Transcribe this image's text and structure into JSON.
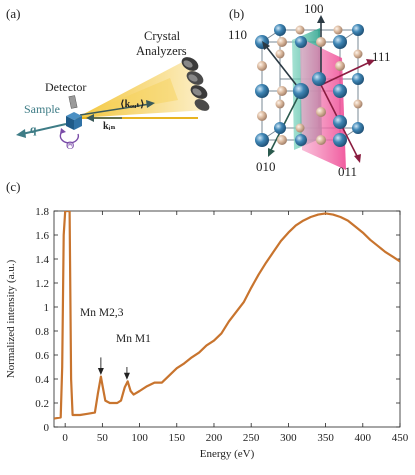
{
  "panels": {
    "a": "(a)",
    "b": "(b)",
    "c": "(c)"
  },
  "setup": {
    "crystal_analyzers_line1": "Crystal",
    "crystal_analyzers_line2": "Analyzers",
    "detector": "Detector",
    "sample": "Sample",
    "q": "q",
    "theta": "Θ",
    "k_out": "⟨kₒᵤₜ⟩",
    "k_in": "kᵢₙ"
  },
  "lattice": {
    "dir_110": "110",
    "dir_100": "100",
    "dir_111": "111",
    "dir_010": "010",
    "dir_011": "011"
  },
  "colors": {
    "curve": "#c8742e",
    "beam": "#f3c330",
    "sphere_blue": "#3f86b5",
    "sphere_tan": "#d9b79c",
    "plane_pink": "#ee5aa0",
    "plane_teal": "#2fae95"
  },
  "annotations": {
    "mn_m23": "Mn M2,3",
    "mn_m1": "Mn M1"
  },
  "chart_data": {
    "type": "line",
    "xlabel": "Energy (eV)",
    "ylabel": "Normalized intensity (a.u.)",
    "xlim": [
      -15,
      450
    ],
    "ylim": [
      0,
      1.8
    ],
    "xticks": [
      0,
      50,
      100,
      150,
      200,
      250,
      300,
      350,
      400,
      450
    ],
    "yticks": [
      0,
      0.2,
      0.4,
      0.6,
      0.8,
      1.0,
      1.2,
      1.4,
      1.6,
      1.8
    ],
    "ytick_labels": [
      "0",
      "0.2",
      "0.4",
      "0.6",
      "0.8",
      "1",
      "1.2",
      "1.4",
      "1.6",
      "1.8"
    ],
    "grid": false,
    "series": [
      {
        "x": [
          -15,
          -6,
          -4,
          -2,
          0,
          2,
          4,
          6,
          8,
          10,
          20,
          30,
          40,
          44,
          48,
          50,
          54,
          60,
          70,
          75,
          80,
          84,
          88,
          92,
          100,
          110,
          120,
          130,
          140,
          150,
          160,
          170,
          180,
          190,
          200,
          210,
          220,
          230,
          240,
          250,
          260,
          270,
          280,
          290,
          300,
          310,
          320,
          330,
          340,
          350,
          360,
          370,
          380,
          390,
          400,
          410,
          420,
          430,
          440,
          450
        ],
        "y": [
          0.07,
          0.08,
          0.5,
          1.6,
          1.9,
          1.9,
          1.9,
          1.85,
          0.4,
          0.1,
          0.1,
          0.11,
          0.12,
          0.28,
          0.42,
          0.35,
          0.22,
          0.2,
          0.2,
          0.22,
          0.33,
          0.38,
          0.3,
          0.27,
          0.3,
          0.34,
          0.37,
          0.37,
          0.43,
          0.49,
          0.53,
          0.58,
          0.62,
          0.68,
          0.72,
          0.78,
          0.88,
          0.96,
          1.04,
          1.16,
          1.27,
          1.37,
          1.46,
          1.55,
          1.62,
          1.68,
          1.72,
          1.75,
          1.77,
          1.78,
          1.77,
          1.75,
          1.72,
          1.67,
          1.62,
          1.56,
          1.51,
          1.46,
          1.42,
          1.38
        ]
      }
    ]
  }
}
